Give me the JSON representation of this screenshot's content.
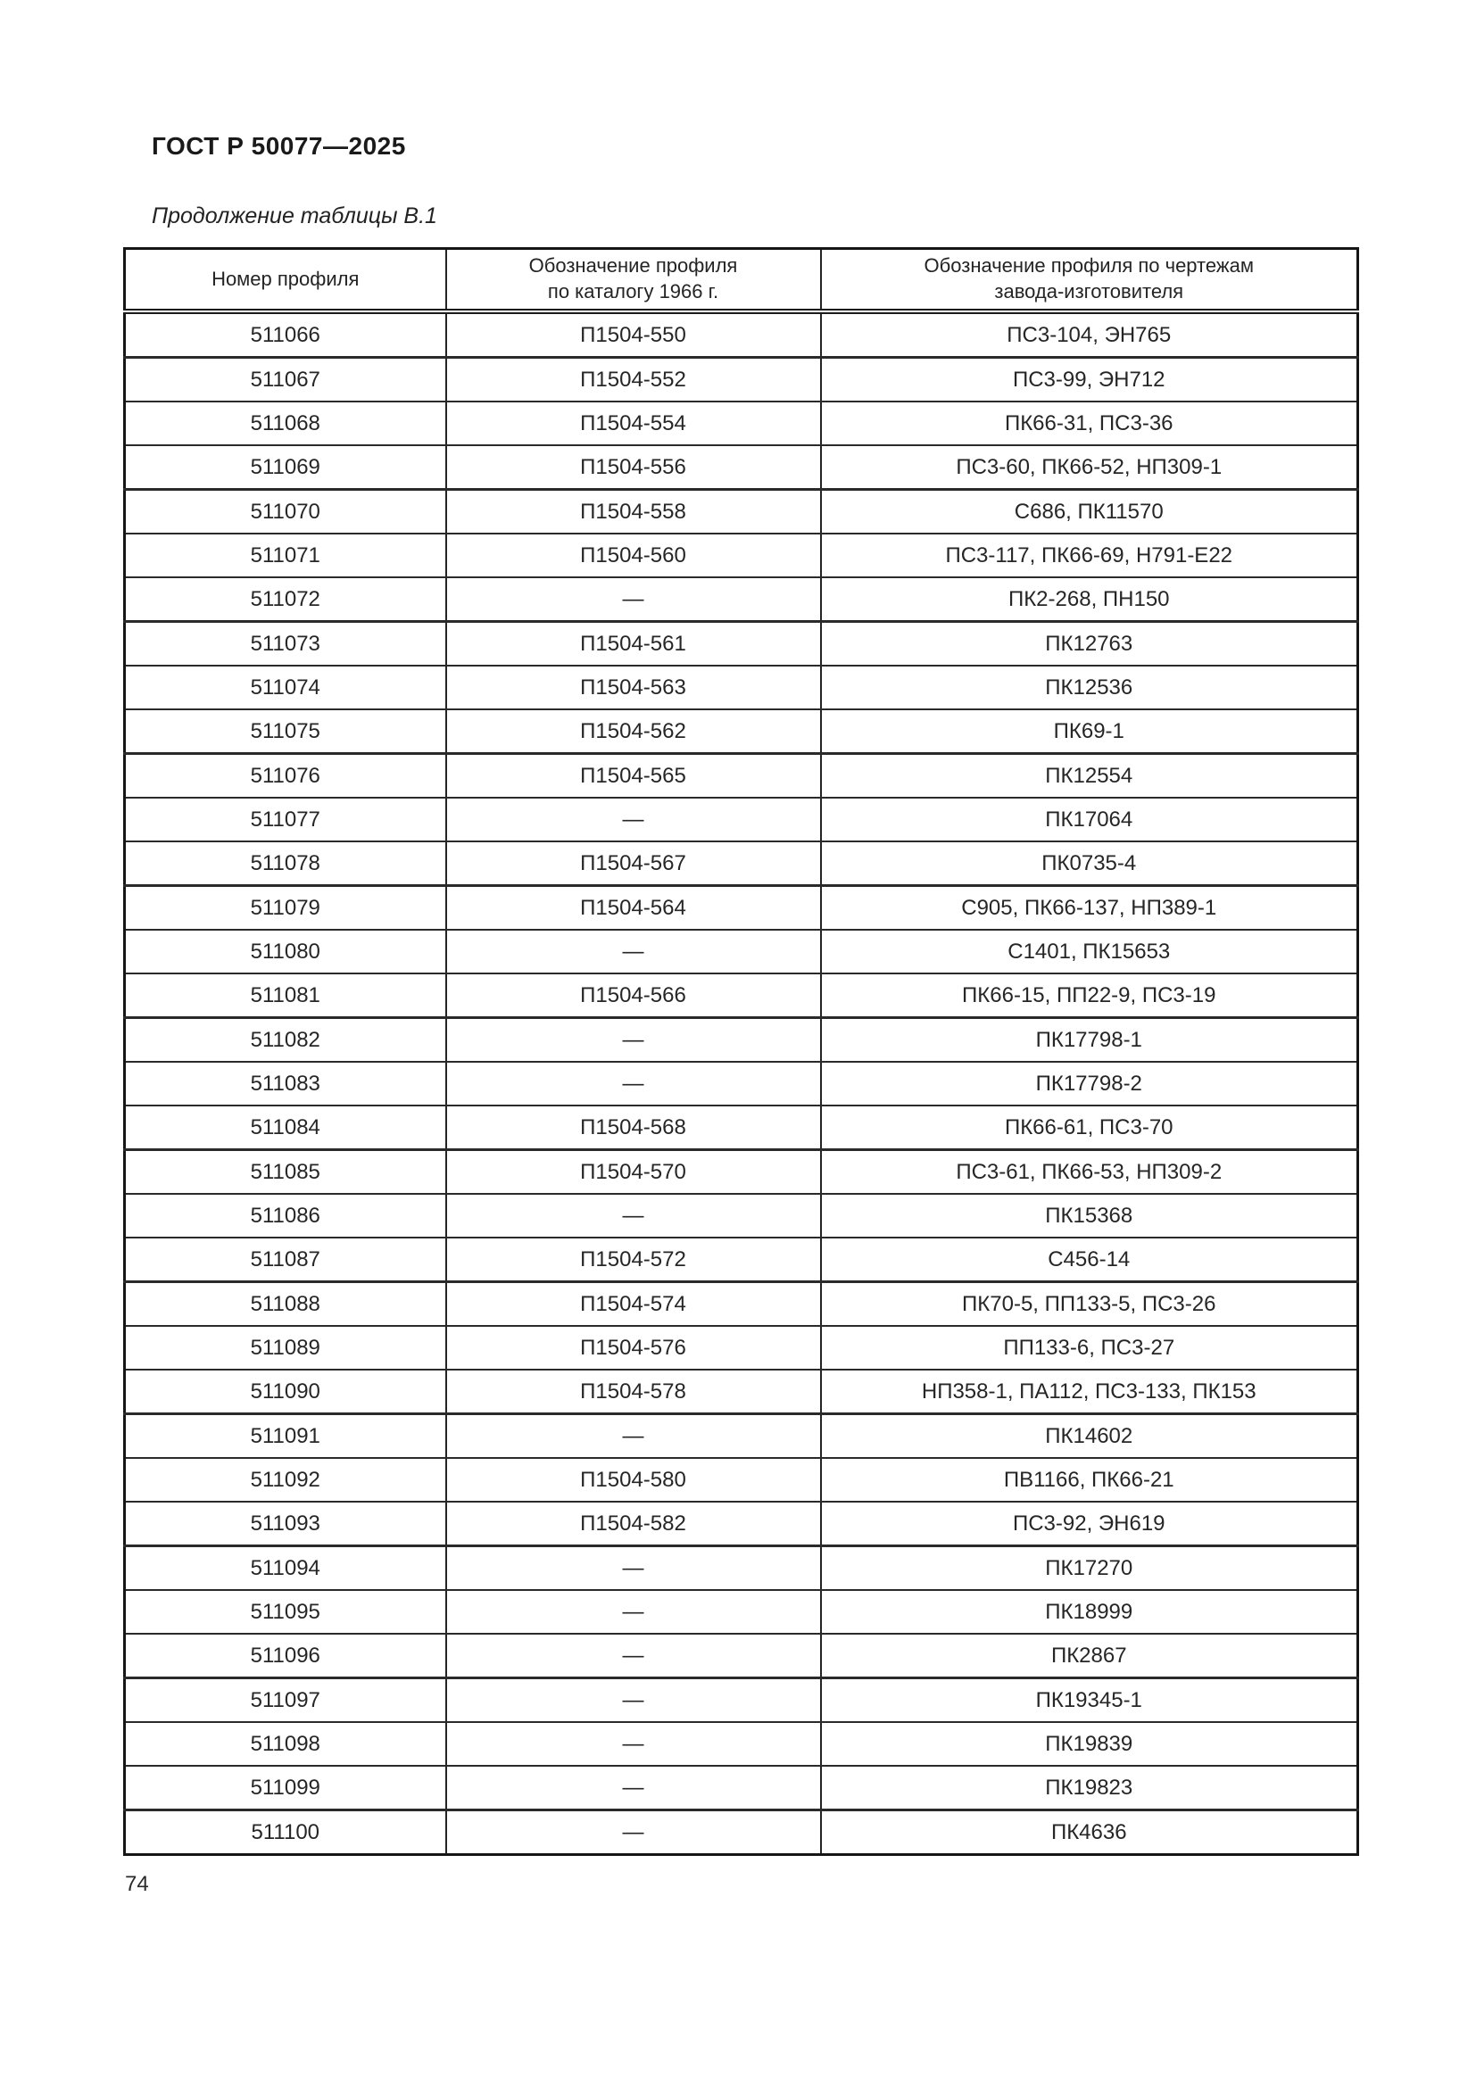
{
  "page": {
    "doc_code": "ГОСТ Р 50077—2025",
    "table_caption": "Продолжение таблицы В.1",
    "page_number": "74"
  },
  "table": {
    "columns": [
      {
        "label": "Номер профиля"
      },
      {
        "label": "Обозначение профиля\nпо каталогу 1966 г."
      },
      {
        "label": "Обозначение профиля по чертежам\nзавода-изготовителя"
      }
    ],
    "empty_marker": "—",
    "rows": [
      {
        "number": "511066",
        "catalog_1966": "П1504-550",
        "factory_drawings": "ПС3-104, ЭН765"
      },
      {
        "number": "511067",
        "catalog_1966": "П1504-552",
        "factory_drawings": "ПС3-99, ЭН712"
      },
      {
        "number": "511068",
        "catalog_1966": "П1504-554",
        "factory_drawings": "ПК66-31, ПС3-36"
      },
      {
        "number": "511069",
        "catalog_1966": "П1504-556",
        "factory_drawings": "ПС3-60, ПК66-52, НП309-1"
      },
      {
        "number": "511070",
        "catalog_1966": "П1504-558",
        "factory_drawings": "С686, ПК11570"
      },
      {
        "number": "511071",
        "catalog_1966": "П1504-560",
        "factory_drawings": "ПС3-117, ПК66-69, Н791-Е22"
      },
      {
        "number": "511072",
        "catalog_1966": "—",
        "factory_drawings": "ПК2-268, ПН150"
      },
      {
        "number": "511073",
        "catalog_1966": "П1504-561",
        "factory_drawings": "ПК12763"
      },
      {
        "number": "511074",
        "catalog_1966": "П1504-563",
        "factory_drawings": "ПК12536"
      },
      {
        "number": "511075",
        "catalog_1966": "П1504-562",
        "factory_drawings": "ПК69-1"
      },
      {
        "number": "511076",
        "catalog_1966": "П1504-565",
        "factory_drawings": "ПК12554"
      },
      {
        "number": "511077",
        "catalog_1966": "—",
        "factory_drawings": "ПК17064"
      },
      {
        "number": "511078",
        "catalog_1966": "П1504-567",
        "factory_drawings": "ПК0735-4"
      },
      {
        "number": "511079",
        "catalog_1966": "П1504-564",
        "factory_drawings": "С905, ПК66-137, НП389-1"
      },
      {
        "number": "511080",
        "catalog_1966": "—",
        "factory_drawings": "С1401, ПК15653"
      },
      {
        "number": "511081",
        "catalog_1966": "П1504-566",
        "factory_drawings": "ПК66-15, ПП22-9, ПС3-19"
      },
      {
        "number": "511082",
        "catalog_1966": "—",
        "factory_drawings": "ПК17798-1"
      },
      {
        "number": "511083",
        "catalog_1966": "—",
        "factory_drawings": "ПК17798-2"
      },
      {
        "number": "511084",
        "catalog_1966": "П1504-568",
        "factory_drawings": "ПК66-61, ПС3-70"
      },
      {
        "number": "511085",
        "catalog_1966": "П1504-570",
        "factory_drawings": "ПС3-61, ПК66-53, НП309-2"
      },
      {
        "number": "511086",
        "catalog_1966": "—",
        "factory_drawings": "ПК15368"
      },
      {
        "number": "511087",
        "catalog_1966": "П1504-572",
        "factory_drawings": "С456-14"
      },
      {
        "number": "511088",
        "catalog_1966": "П1504-574",
        "factory_drawings": "ПК70-5, ПП133-5, ПС3-26"
      },
      {
        "number": "511089",
        "catalog_1966": "П1504-576",
        "factory_drawings": "ПП133-6, ПС3-27"
      },
      {
        "number": "511090",
        "catalog_1966": "П1504-578",
        "factory_drawings": "НП358-1, ПА112, ПС3-133, ПК153"
      },
      {
        "number": "511091",
        "catalog_1966": "—",
        "factory_drawings": "ПК14602"
      },
      {
        "number": "511092",
        "catalog_1966": "П1504-580",
        "factory_drawings": "ПВ1166, ПК66-21"
      },
      {
        "number": "511093",
        "catalog_1966": "П1504-582",
        "factory_drawings": "ПС3-92, ЭН619"
      },
      {
        "number": "511094",
        "catalog_1966": "—",
        "factory_drawings": "ПК17270"
      },
      {
        "number": "511095",
        "catalog_1966": "—",
        "factory_drawings": "ПК18999"
      },
      {
        "number": "511096",
        "catalog_1966": "—",
        "factory_drawings": "ПК2867"
      },
      {
        "number": "511097",
        "catalog_1966": "—",
        "factory_drawings": "ПК19345-1"
      },
      {
        "number": "511098",
        "catalog_1966": "—",
        "factory_drawings": "ПК19839"
      },
      {
        "number": "511099",
        "catalog_1966": "—",
        "factory_drawings": "ПК19823"
      },
      {
        "number": "511100",
        "catalog_1966": "—",
        "factory_drawings": "ПК4636"
      }
    ]
  }
}
